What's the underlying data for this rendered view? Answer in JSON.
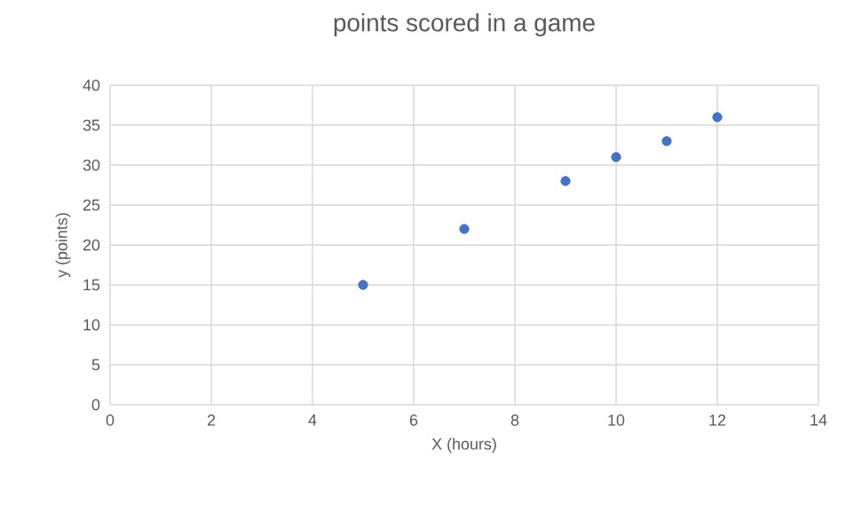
{
  "chart_data": {
    "type": "scatter",
    "title": "points scored in a game",
    "xlabel": "X (hours)",
    "ylabel": "y (points)",
    "x": [
      5,
      7,
      9,
      10,
      11,
      12
    ],
    "values": [
      15,
      22,
      28,
      31,
      33,
      36
    ],
    "color": "#4472c4",
    "marker": "circle",
    "xlim": [
      0,
      14
    ],
    "xticks": [
      0,
      2,
      4,
      6,
      8,
      10,
      12,
      14
    ],
    "ylim": [
      0,
      40
    ],
    "yticks": [
      0,
      5,
      10,
      15,
      20,
      25,
      30,
      35,
      40
    ],
    "grid": true
  }
}
